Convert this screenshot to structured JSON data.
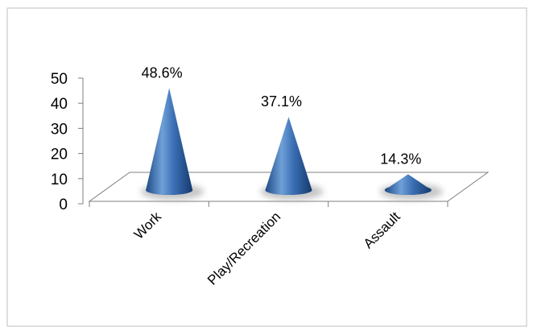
{
  "chart_data": {
    "type": "bar",
    "style": "3d-cone",
    "categories": [
      "Work",
      "Play/Recreation",
      "Assault"
    ],
    "values": [
      48.6,
      37.1,
      14.3
    ],
    "data_labels": [
      "48.6%",
      "37.1%",
      "14.3%"
    ],
    "yticks": [
      "0",
      "10",
      "20",
      "30",
      "40",
      "50"
    ],
    "ylim": [
      0,
      50
    ],
    "grid": false,
    "legend": "none",
    "colors": {
      "cone_light": "#6fa0d8",
      "cone_mid": "#3a6fb4",
      "cone_dark": "#1e4a86",
      "floor": "#ffffff",
      "floor_stroke": "#7f7f7f",
      "border": "#bfbfbf"
    }
  }
}
